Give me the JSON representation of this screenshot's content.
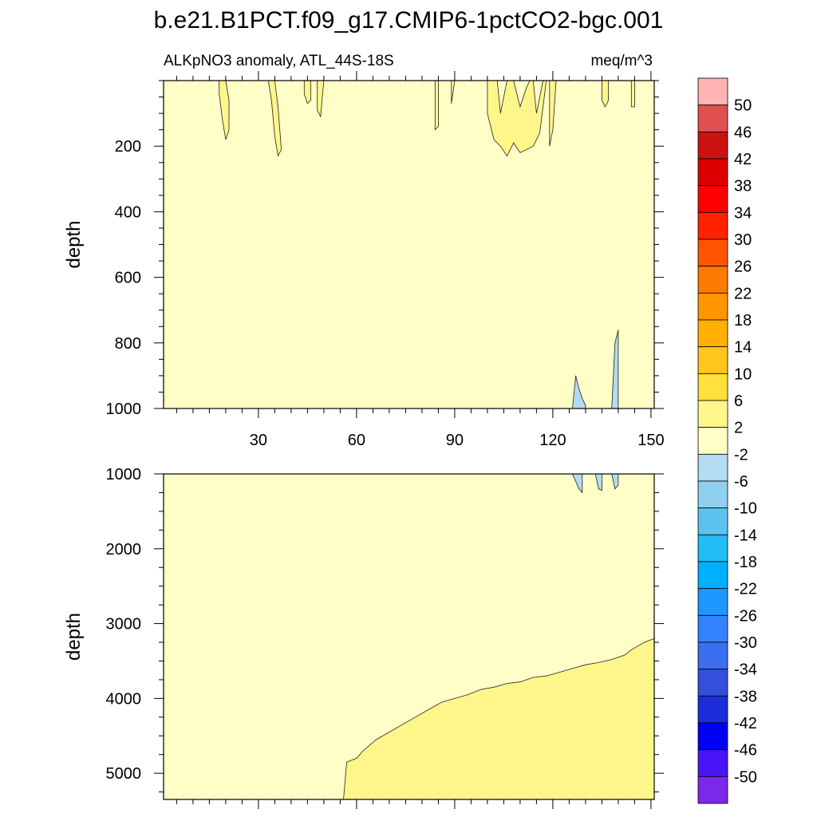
{
  "figure": {
    "title": "b.e21.B1PCT.f09_g17.CMIP6-1pctCO2-bgc.001",
    "subtitle_left": "ALKpNO3 anomaly, ATL_44S-18S",
    "subtitle_right": "meq/m^3"
  },
  "colors": {
    "level_fill_low": "#fffec6",
    "level_fill_mid": "#fff68b",
    "level_fill_neg": "#b4dcf0",
    "contour_line": "#222222",
    "frame": "#000000"
  },
  "chart_data": [
    {
      "type": "contour",
      "panel": "upper",
      "xlabel": "",
      "ylabel": "depth",
      "xlim": [
        1,
        151
      ],
      "ylim": [
        1000,
        0
      ],
      "xticks": [
        30,
        60,
        90,
        120,
        150
      ],
      "yticks": [
        200,
        400,
        600,
        800,
        1000
      ],
      "background_level": "-2 to 2",
      "regions": [
        {
          "level": "2 to 6",
          "x": [
            18,
            20,
            21,
            21,
            20,
            19,
            18
          ],
          "y": [
            0,
            0,
            60,
            150,
            180,
            120,
            40
          ]
        },
        {
          "level": "2 to 6",
          "x": [
            33,
            35,
            36,
            37,
            36,
            35,
            34
          ],
          "y": [
            0,
            0,
            80,
            210,
            230,
            170,
            60
          ]
        },
        {
          "level": "2 to 6",
          "x": [
            44,
            46,
            46,
            45,
            44
          ],
          "y": [
            0,
            0,
            60,
            70,
            40
          ]
        },
        {
          "level": "2 to 6",
          "x": [
            48,
            50,
            49,
            48
          ],
          "y": [
            0,
            0,
            110,
            90
          ]
        },
        {
          "level": "2 to 6",
          "x": [
            84,
            85,
            85,
            84
          ],
          "y": [
            0,
            0,
            140,
            150
          ]
        },
        {
          "level": "2 to 6",
          "x": [
            89,
            90,
            89
          ],
          "y": [
            0,
            0,
            70
          ]
        },
        {
          "level": "2 to 6",
          "x": [
            100,
            103,
            104,
            106,
            108,
            110,
            112,
            113,
            114,
            115,
            117,
            118,
            116,
            114,
            112,
            110,
            108,
            106,
            104,
            102,
            100
          ],
          "y": [
            0,
            0,
            100,
            0,
            0,
            80,
            20,
            0,
            0,
            100,
            0,
            0,
            160,
            200,
            210,
            220,
            190,
            230,
            200,
            180,
            100
          ]
        },
        {
          "level": "2 to 6",
          "x": [
            119,
            121,
            120,
            119
          ],
          "y": [
            0,
            0,
            150,
            200
          ]
        },
        {
          "level": "2 to 6",
          "x": [
            135,
            137,
            137,
            136,
            135
          ],
          "y": [
            0,
            0,
            60,
            80,
            60
          ]
        },
        {
          "level": "2 to 6",
          "x": [
            144,
            145,
            145,
            144
          ],
          "y": [
            0,
            0,
            80,
            80
          ]
        },
        {
          "level": "-6 to -2",
          "x": [
            126,
            127,
            128,
            129,
            130,
            130,
            126
          ],
          "y": [
            1000,
            900,
            940,
            970,
            990,
            1000,
            1000
          ]
        },
        {
          "level": "-6 to -2",
          "x": [
            138,
            139,
            140,
            140,
            138
          ],
          "y": [
            1000,
            800,
            760,
            1000,
            1000
          ]
        }
      ]
    },
    {
      "type": "contour",
      "panel": "lower",
      "xlabel": "",
      "ylabel": "depth",
      "xlim": [
        1,
        151
      ],
      "ylim": [
        5350,
        1000
      ],
      "yticks": [
        1000,
        2000,
        3000,
        4000,
        5000
      ],
      "background_level": "-2 to 2",
      "regions": [
        {
          "level": "2 to 6",
          "x": [
            56,
            57,
            60,
            62,
            66,
            70,
            74,
            78,
            82,
            86,
            90,
            94,
            98,
            102,
            106,
            110,
            114,
            118,
            122,
            126,
            130,
            134,
            138,
            142,
            144,
            146,
            148,
            151,
            151,
            56
          ],
          "y": [
            5350,
            4850,
            4800,
            4700,
            4550,
            4450,
            4350,
            4250,
            4150,
            4050,
            4000,
            3950,
            3880,
            3850,
            3800,
            3780,
            3720,
            3700,
            3650,
            3600,
            3550,
            3520,
            3480,
            3420,
            3350,
            3300,
            3250,
            3200,
            5350,
            5350
          ]
        },
        {
          "level": "-6 to -2",
          "x": [
            126,
            127,
            128,
            129,
            129,
            126
          ],
          "y": [
            1000,
            1100,
            1200,
            1250,
            1000,
            1000
          ]
        },
        {
          "level": "-6 to -2",
          "x": [
            133,
            134,
            135,
            135,
            133
          ],
          "y": [
            1000,
            1200,
            1220,
            1000,
            1000
          ]
        },
        {
          "level": "-6 to -2",
          "x": [
            138,
            139,
            140,
            140,
            138
          ],
          "y": [
            1000,
            1200,
            1150,
            1000,
            1000
          ]
        }
      ]
    }
  ],
  "colorbar": {
    "levels": [
      {
        "label": "50",
        "color": "#ffb3b3"
      },
      {
        "label": "46",
        "color": "#e05050"
      },
      {
        "label": "42",
        "color": "#cc1111"
      },
      {
        "label": "38",
        "color": "#dd0000"
      },
      {
        "label": "34",
        "color": "#ff0000"
      },
      {
        "label": "30",
        "color": "#ff2200"
      },
      {
        "label": "26",
        "color": "#ff5500"
      },
      {
        "label": "22",
        "color": "#ff7a00"
      },
      {
        "label": "18",
        "color": "#ff9600"
      },
      {
        "label": "14",
        "color": "#ffb000"
      },
      {
        "label": "10",
        "color": "#ffc61e"
      },
      {
        "label": "6",
        "color": "#ffe03c"
      },
      {
        "label": "2",
        "color": "#fff68b"
      },
      {
        "label": "-2",
        "color": "#fffec6"
      },
      {
        "label": "-6",
        "color": "#b4dcf0"
      },
      {
        "label": "-10",
        "color": "#8ed0ee"
      },
      {
        "label": "-14",
        "color": "#5cc3ef"
      },
      {
        "label": "-18",
        "color": "#22bdf5"
      },
      {
        "label": "-22",
        "color": "#00b0ff"
      },
      {
        "label": "-26",
        "color": "#1e96ff"
      },
      {
        "label": "-30",
        "color": "#3282ff"
      },
      {
        "label": "-34",
        "color": "#3c6ef0"
      },
      {
        "label": "-38",
        "color": "#3250dc"
      },
      {
        "label": "-42",
        "color": "#1e2ddc"
      },
      {
        "label": "-46",
        "color": "#0000f5"
      },
      {
        "label": "-50",
        "color": "#4614f5"
      },
      {
        "label": "",
        "color": "#7c28eb"
      }
    ]
  }
}
